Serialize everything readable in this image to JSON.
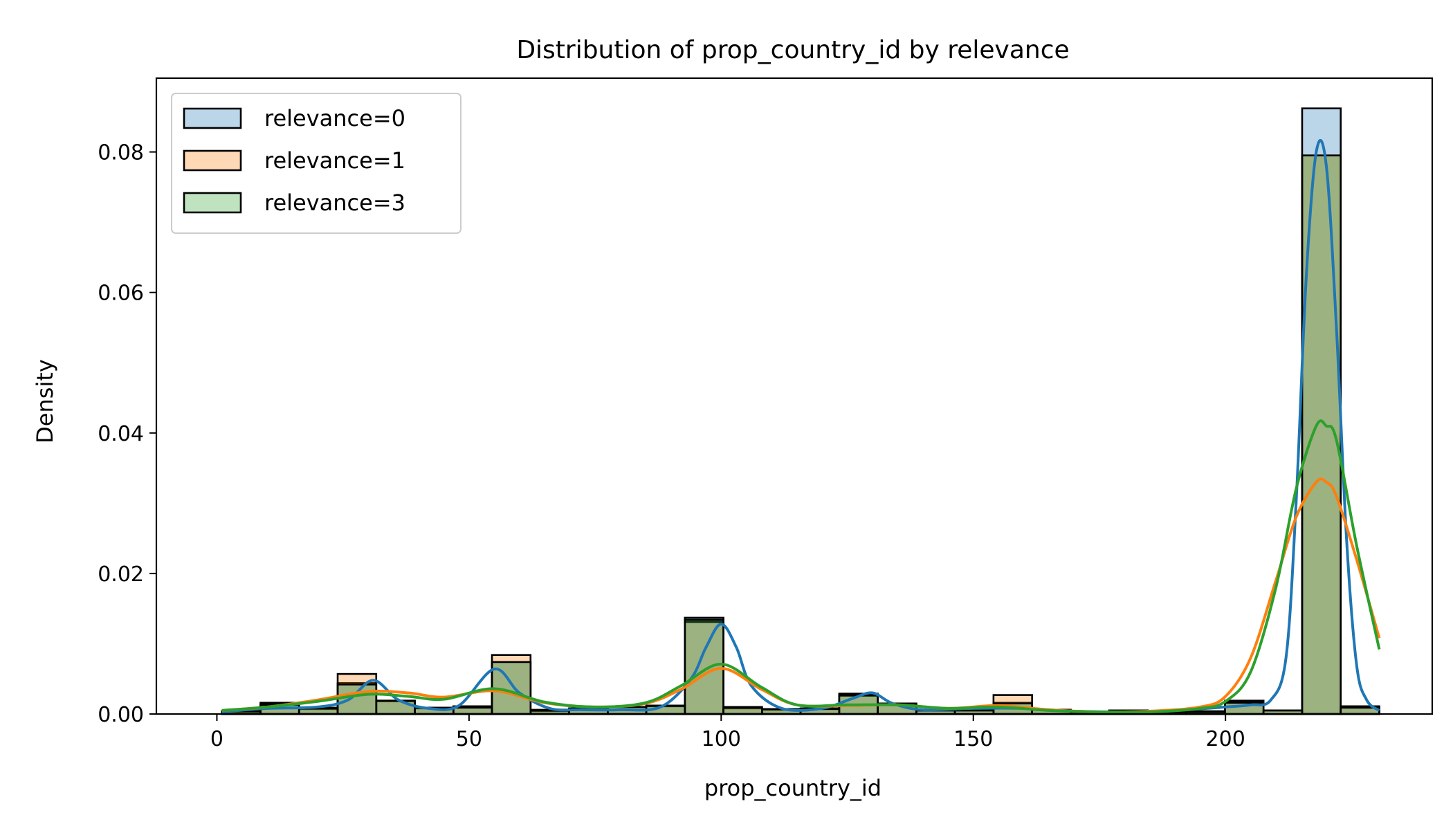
{
  "chart_data": {
    "type": "histogram",
    "title": "Distribution of prop_country_id by relevance",
    "xlabel": "prop_country_id",
    "ylabel": "Density",
    "xlim": [
      -12,
      241
    ],
    "ylim": [
      0,
      0.0905
    ],
    "x_ticks": [
      0,
      50,
      100,
      150,
      200
    ],
    "y_ticks": [
      0.0,
      0.02,
      0.04,
      0.06,
      0.08
    ],
    "x_tick_labels": [
      "0",
      "50",
      "100",
      "150",
      "200"
    ],
    "y_tick_labels": [
      "0.00",
      "0.02",
      "0.04",
      "0.06",
      "0.08"
    ],
    "legend_position": "upper-left",
    "grid": false,
    "bin_edges": [
      1,
      8.65,
      16.3,
      23.95,
      31.6,
      39.25,
      46.9,
      54.55,
      62.2,
      69.85,
      77.5,
      85.15,
      92.8,
      100.45,
      108.1,
      115.75,
      123.4,
      131.05,
      138.7,
      146.35,
      154.0,
      161.65,
      169.3,
      176.95,
      184.6,
      192.25,
      199.9,
      207.55,
      215.2,
      222.85,
      230.5
    ],
    "series": [
      {
        "name": "relevance=0",
        "color": "#1f77b4",
        "densities": [
          0.0003,
          0.0016,
          0.0007,
          0.0044,
          0.0018,
          0.0008,
          0.001,
          0.0074,
          0.0004,
          0.0008,
          0.001,
          0.0012,
          0.0137,
          0.0008,
          0.0006,
          0.0008,
          0.0029,
          0.0015,
          0.0005,
          0.0005,
          0.0016,
          0.0006,
          0.0003,
          0.0005,
          0.0003,
          0.0003,
          0.0019,
          0.0005,
          0.0862,
          0.0011
        ],
        "kde": {
          "x": [
            1,
            10,
            20,
            26,
            31,
            36,
            42,
            48,
            55,
            60,
            66,
            72,
            80,
            88,
            94,
            97,
            100,
            103,
            106,
            112,
            120,
            126,
            130,
            134,
            140,
            150,
            160,
            170,
            180,
            190,
            200,
            205,
            209,
            212,
            214,
            216,
            218,
            220,
            222,
            224,
            226,
            228,
            230.5
          ],
          "y": [
            0.0003,
            0.0008,
            0.001,
            0.002,
            0.0048,
            0.002,
            0.0008,
            0.0012,
            0.0064,
            0.003,
            0.0008,
            0.0006,
            0.0006,
            0.001,
            0.005,
            0.0095,
            0.0128,
            0.0095,
            0.004,
            0.0008,
            0.0008,
            0.0022,
            0.003,
            0.0015,
            0.0006,
            0.0008,
            0.0008,
            0.0004,
            0.0003,
            0.0005,
            0.001,
            0.0013,
            0.002,
            0.008,
            0.03,
            0.062,
            0.08,
            0.078,
            0.055,
            0.025,
            0.007,
            0.002,
            0.0005
          ]
        }
      },
      {
        "name": "relevance=1",
        "color": "#ff7f0e",
        "densities": [
          0.0004,
          0.0014,
          0.0009,
          0.0057,
          0.0019,
          0.0009,
          0.0011,
          0.0084,
          0.0006,
          0.0008,
          0.001,
          0.0011,
          0.0131,
          0.001,
          0.0007,
          0.0008,
          0.0026,
          0.0014,
          0.0005,
          0.0005,
          0.0027,
          0.0006,
          0.0003,
          0.0005,
          0.0003,
          0.0004,
          0.0017,
          0.0005,
          0.0795,
          0.0009
        ],
        "kde": {
          "x": [
            1,
            10,
            20,
            30,
            38,
            45,
            55,
            65,
            75,
            85,
            92,
            100,
            108,
            115,
            125,
            135,
            145,
            155,
            165,
            175,
            185,
            195,
            200,
            205,
            210,
            214,
            218,
            220,
            222,
            226,
            230.5
          ],
          "y": [
            0.0005,
            0.001,
            0.002,
            0.0032,
            0.003,
            0.0024,
            0.0033,
            0.0016,
            0.001,
            0.0015,
            0.0035,
            0.0065,
            0.0035,
            0.0013,
            0.0012,
            0.0013,
            0.0008,
            0.0012,
            0.0006,
            0.0003,
            0.0004,
            0.001,
            0.0025,
            0.008,
            0.019,
            0.028,
            0.033,
            0.033,
            0.031,
            0.022,
            0.0108
          ]
        }
      },
      {
        "name": "relevance=3",
        "color": "#2ca02c",
        "densities": [
          0.0004,
          0.0013,
          0.0008,
          0.0042,
          0.0019,
          0.0009,
          0.0009,
          0.0074,
          0.0005,
          0.0008,
          0.001,
          0.0012,
          0.0134,
          0.0009,
          0.0007,
          0.0007,
          0.0027,
          0.0013,
          0.0005,
          0.0005,
          0.0015,
          0.0006,
          0.0003,
          0.0005,
          0.0003,
          0.0003,
          0.0016,
          0.0005,
          0.0795,
          0.0009
        ],
        "kde": {
          "x": [
            1,
            10,
            20,
            30,
            38,
            45,
            55,
            65,
            75,
            85,
            92,
            100,
            108,
            115,
            125,
            135,
            145,
            155,
            165,
            175,
            185,
            195,
            200,
            205,
            210,
            214,
            218,
            220,
            222,
            226,
            230.5
          ],
          "y": [
            0.0005,
            0.001,
            0.0018,
            0.0028,
            0.0025,
            0.0021,
            0.0036,
            0.0017,
            0.001,
            0.0016,
            0.004,
            0.0071,
            0.0038,
            0.0013,
            0.0013,
            0.0013,
            0.0008,
            0.001,
            0.0005,
            0.0003,
            0.0003,
            0.0008,
            0.0018,
            0.006,
            0.018,
            0.032,
            0.041,
            0.041,
            0.039,
            0.024,
            0.0092
          ]
        }
      }
    ]
  }
}
